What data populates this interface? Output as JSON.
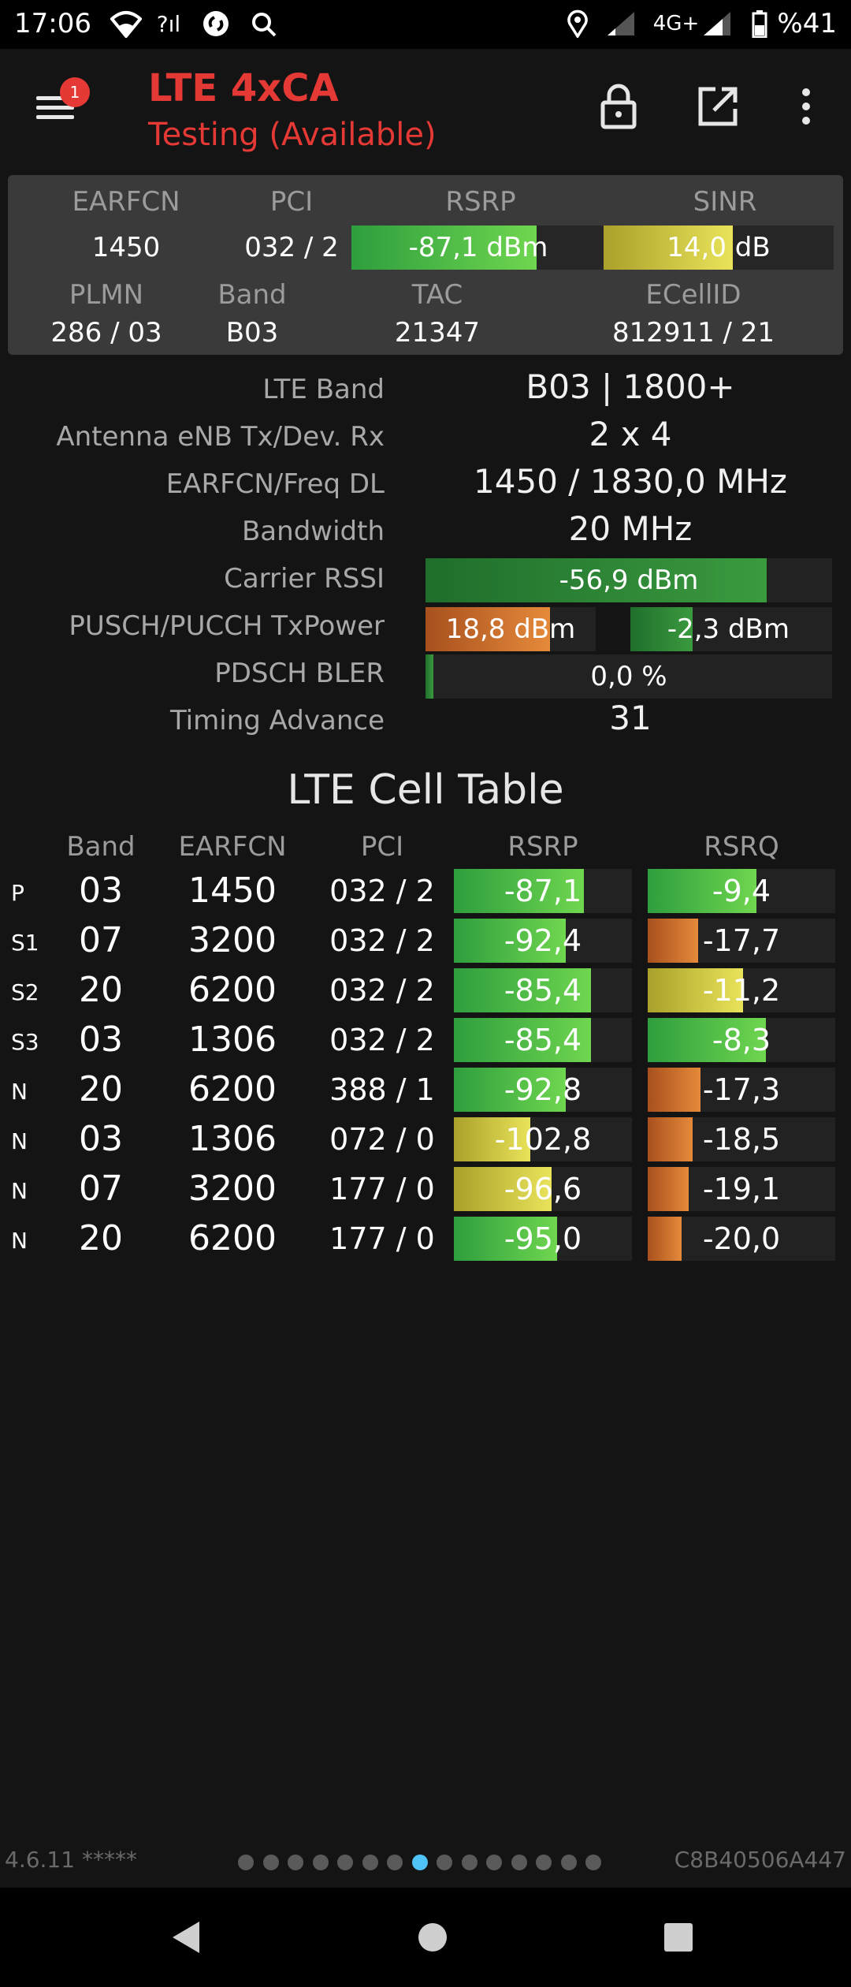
{
  "status_bar": {
    "time": "17:06",
    "network": "4G+",
    "battery": "%41",
    "icons": [
      "wifi-icon",
      "no-signal-icon",
      "shazam-icon",
      "search-icon",
      "location-icon",
      "signal-icon",
      "signal-icon",
      "battery-icon"
    ]
  },
  "app_bar": {
    "title": "LTE 4xCA",
    "subtitle": "Testing (Available)",
    "badge": "1",
    "actions": [
      "lock-icon",
      "open-external-icon",
      "more-vert-icon"
    ]
  },
  "summary": {
    "labels": {
      "earfcn": "EARFCN",
      "pci": "PCI",
      "rsrp": "RSRP",
      "sinr": "SINR",
      "plmn": "PLMN",
      "band": "Band",
      "tac": "TAC",
      "ecellid": "ECellID"
    },
    "earfcn": "1450",
    "pci": "032 / 2",
    "rsrp": {
      "text": "-87,1 dBm",
      "fill": 0.73
    },
    "sinr": {
      "text": "14,0 dB",
      "fill": 0.56
    },
    "plmn": "286 / 03",
    "band": "B03",
    "tac": "21347",
    "ecellid": "812911 / 21"
  },
  "details": [
    {
      "label": "LTE Band",
      "value": "B03 | 1800+"
    },
    {
      "label": "Antenna eNB Tx/Dev. Rx",
      "value": "2 x 4"
    },
    {
      "label": "EARFCN/Freq DL",
      "value": "1450 / 1830,0 MHz"
    },
    {
      "label": "Bandwidth",
      "value": "20 MHz"
    },
    {
      "label": "Carrier RSSI",
      "value": "-56,9 dBm",
      "fill": 0.84
    },
    {
      "label": "PUSCH/PUCCH TxPower",
      "value": "18,8 dBm",
      "value2": "-2,3 dBm",
      "fill": 0.73,
      "fill2": 0.31
    },
    {
      "label": "PDSCH BLER",
      "value": "0,0 %",
      "fill": 0.02
    },
    {
      "label": "Timing Advance",
      "value": "31"
    }
  ],
  "cell_table": {
    "title": "LTE Cell Table",
    "headers": [
      "Band",
      "EARFCN",
      "PCI",
      "RSRP",
      "RSRQ"
    ],
    "rows": [
      {
        "tag": "P",
        "band": "03",
        "earfcn": "1450",
        "pci": "032 / 2",
        "rsrp": "-87,1",
        "rsrp_fill": 0.73,
        "rsrp_color": "green",
        "rsrq": "-9,4",
        "rsrq_fill": 0.58,
        "rsrq_color": "green"
      },
      {
        "tag": "S1",
        "band": "07",
        "earfcn": "3200",
        "pci": "032 / 2",
        "rsrp": "-92,4",
        "rsrp_fill": 0.63,
        "rsrp_color": "green",
        "rsrq": "-17,7",
        "rsrq_fill": 0.27,
        "rsrq_color": "orange"
      },
      {
        "tag": "S2",
        "band": "20",
        "earfcn": "6200",
        "pci": "032 / 2",
        "rsrp": "-85,4",
        "rsrp_fill": 0.77,
        "rsrp_color": "green",
        "rsrq": "-11,2",
        "rsrq_fill": 0.51,
        "rsrq_color": "yellow"
      },
      {
        "tag": "S3",
        "band": "03",
        "earfcn": "1306",
        "pci": "032 / 2",
        "rsrp": "-85,4",
        "rsrp_fill": 0.77,
        "rsrp_color": "green",
        "rsrq": "-8,3",
        "rsrq_fill": 0.63,
        "rsrq_color": "green"
      },
      {
        "tag": "N",
        "band": "20",
        "earfcn": "6200",
        "pci": "388 / 1",
        "rsrp": "-92,8",
        "rsrp_fill": 0.63,
        "rsrp_color": "green",
        "rsrq": "-17,3",
        "rsrq_fill": 0.28,
        "rsrq_color": "orange"
      },
      {
        "tag": "N",
        "band": "03",
        "earfcn": "1306",
        "pci": "072 / 0",
        "rsrp": "-102,8",
        "rsrp_fill": 0.43,
        "rsrp_color": "yellow",
        "rsrq": "-18,5",
        "rsrq_fill": 0.24,
        "rsrq_color": "orange"
      },
      {
        "tag": "N",
        "band": "07",
        "earfcn": "3200",
        "pci": "177 / 0",
        "rsrp": "-96,6",
        "rsrp_fill": 0.55,
        "rsrp_color": "yellow",
        "rsrq": "-19,1",
        "rsrq_fill": 0.22,
        "rsrq_color": "orange"
      },
      {
        "tag": "N",
        "band": "20",
        "earfcn": "6200",
        "pci": "177 / 0",
        "rsrp": "-95,0",
        "rsrp_fill": 0.58,
        "rsrp_color": "green",
        "rsrq": "-20,0",
        "rsrq_fill": 0.18,
        "rsrq_color": "orange"
      }
    ]
  },
  "footer": {
    "version": "4.6.11 *****",
    "device_id": "C8B40506A447",
    "page_count": 15,
    "active_page": 7
  },
  "nav_bar": [
    "back-icon",
    "home-icon",
    "recents-icon"
  ]
}
